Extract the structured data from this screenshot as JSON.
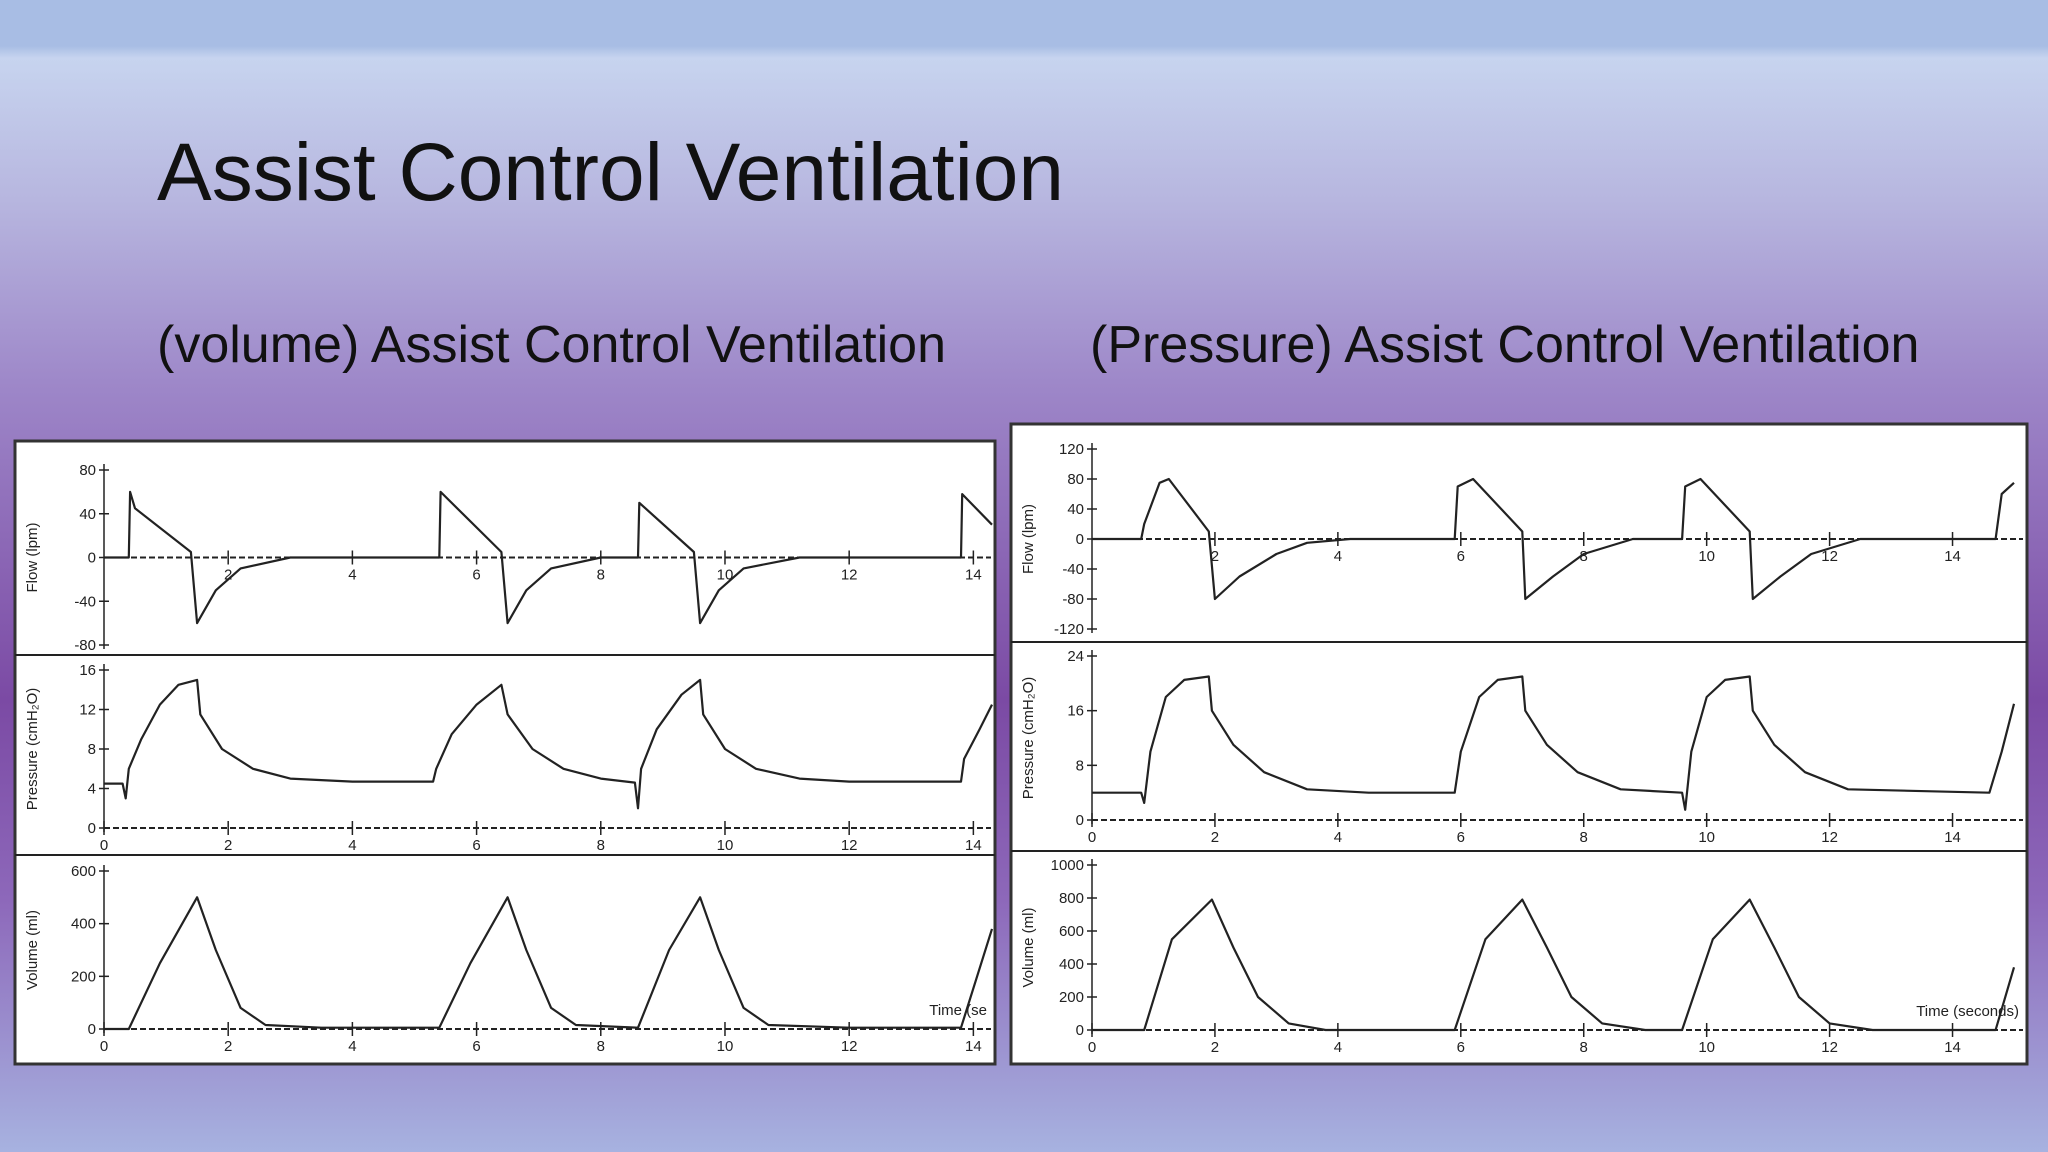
{
  "title": "Assist Control Ventilation",
  "subtitles": [
    "(volume) Assist Control Ventilation",
    "(Pressure) Assist Control Ventilation"
  ],
  "chart_data": [
    {
      "type": "line",
      "ylabel": "Flow (lpm)",
      "color": "#222222",
      "xlim": [
        0,
        14.3
      ],
      "ylim": [
        -80,
        80
      ],
      "xticks": [
        2,
        4,
        6,
        8,
        10,
        12,
        14
      ],
      "yticks": [
        -80,
        -40,
        0,
        40,
        80
      ],
      "x": [
        0,
        0.4,
        0.42,
        0.5,
        1.4,
        1.5,
        1.8,
        2.2,
        3,
        5.4,
        5.42,
        6.4,
        6.5,
        6.8,
        7.2,
        8,
        8.6,
        8.62,
        9.5,
        9.6,
        9.9,
        10.3,
        11.2,
        13.8,
        13.82,
        14.3
      ],
      "values": [
        0,
        0,
        60,
        45,
        5,
        -60,
        -30,
        -10,
        0,
        0,
        60,
        5,
        -60,
        -30,
        -10,
        0,
        0,
        50,
        5,
        -60,
        -30,
        -10,
        0,
        0,
        58,
        30
      ]
    },
    {
      "type": "line",
      "ylabel": "Pressure (cmH₂O)",
      "color": "#222222",
      "xlim": [
        0,
        14.3
      ],
      "ylim": [
        0,
        16
      ],
      "xticks": [
        0,
        2,
        4,
        6,
        8,
        10,
        12,
        14
      ],
      "yticks": [
        0,
        4,
        8,
        12,
        16
      ],
      "x": [
        0,
        0.3,
        0.35,
        0.4,
        0.6,
        0.9,
        1.2,
        1.5,
        1.55,
        1.9,
        2.4,
        3,
        4,
        5.3,
        5.35,
        5.6,
        6,
        6.4,
        6.5,
        6.9,
        7.4,
        8,
        8.55,
        8.6,
        8.65,
        8.9,
        9.3,
        9.6,
        9.65,
        10,
        10.5,
        11.2,
        12,
        13.8,
        13.85,
        14.1,
        14.3
      ],
      "values": [
        4.5,
        4.5,
        3,
        6,
        9,
        12.5,
        14.5,
        15,
        11.5,
        8,
        6,
        5,
        4.7,
        4.7,
        6,
        9.5,
        12.5,
        14.5,
        11.5,
        8,
        6,
        5,
        4.6,
        2,
        6,
        10,
        13.5,
        15,
        11.5,
        8,
        6,
        5,
        4.7,
        4.7,
        7,
        10,
        12.5
      ]
    },
    {
      "type": "line",
      "ylabel": "Volume (ml)",
      "xlabel": "Time (se",
      "color": "#222222",
      "xlim": [
        0,
        14.3
      ],
      "ylim": [
        0,
        600
      ],
      "xticks": [
        0,
        2,
        4,
        6,
        8,
        10,
        12,
        14
      ],
      "yticks": [
        0,
        200,
        400,
        600
      ],
      "x": [
        0,
        0.4,
        0.9,
        1.5,
        1.8,
        2.2,
        2.6,
        3.5,
        5.4,
        5.9,
        6.5,
        6.8,
        7.2,
        7.6,
        8.6,
        9.1,
        9.6,
        9.9,
        10.3,
        10.7,
        12,
        13.8,
        14.3
      ],
      "values": [
        0,
        0,
        250,
        500,
        300,
        80,
        15,
        5,
        5,
        250,
        500,
        300,
        80,
        15,
        5,
        300,
        500,
        300,
        80,
        15,
        5,
        5,
        380
      ]
    },
    {
      "type": "line",
      "ylabel": "Flow (lpm)",
      "color": "#222222",
      "xlim": [
        0,
        15
      ],
      "ylim": [
        -120,
        120
      ],
      "xticks": [
        2,
        4,
        6,
        8,
        10,
        12,
        14
      ],
      "yticks": [
        -120,
        -80,
        -40,
        0,
        40,
        80,
        120
      ],
      "x": [
        0,
        0.8,
        0.85,
        1.1,
        1.25,
        1.9,
        2,
        2.4,
        3,
        3.5,
        4.2,
        5.9,
        5.95,
        6.2,
        7,
        7.05,
        7.5,
        8,
        8.8,
        9.6,
        9.65,
        9.9,
        10.7,
        10.75,
        11.2,
        11.7,
        12.5,
        14.7,
        14.8,
        15
      ],
      "values": [
        0,
        0,
        20,
        75,
        80,
        10,
        -80,
        -50,
        -20,
        -5,
        0,
        0,
        70,
        80,
        10,
        -80,
        -50,
        -20,
        0,
        0,
        70,
        80,
        10,
        -80,
        -50,
        -20,
        0,
        0,
        60,
        75
      ]
    },
    {
      "type": "line",
      "ylabel": "Pressure (cmH₂O)",
      "color": "#222222",
      "xlim": [
        0,
        15
      ],
      "ylim": [
        0,
        24
      ],
      "xticks": [
        0,
        2,
        4,
        6,
        8,
        10,
        12,
        14
      ],
      "yticks": [
        0,
        8,
        16,
        24
      ],
      "x": [
        0,
        0.8,
        0.85,
        0.95,
        1.2,
        1.5,
        1.9,
        1.95,
        2.3,
        2.8,
        3.5,
        4.5,
        5.9,
        6,
        6.3,
        6.6,
        7,
        7.05,
        7.4,
        7.9,
        8.6,
        9.6,
        9.65,
        9.75,
        10,
        10.3,
        10.7,
        10.75,
        11.1,
        11.6,
        12.3,
        14.6,
        14.8,
        15
      ],
      "values": [
        4,
        4,
        2.5,
        10,
        18,
        20.5,
        21,
        16,
        11,
        7,
        4.5,
        4,
        4,
        10,
        18,
        20.5,
        21,
        16,
        11,
        7,
        4.5,
        4,
        1.5,
        10,
        18,
        20.5,
        21,
        16,
        11,
        7,
        4.5,
        4,
        10,
        17
      ]
    },
    {
      "type": "line",
      "ylabel": "Volume (ml)",
      "xlabel": "Time (seconds)",
      "color": "#222222",
      "xlim": [
        0,
        15
      ],
      "ylim": [
        0,
        1000
      ],
      "xticks": [
        0,
        2,
        4,
        6,
        8,
        10,
        12,
        14
      ],
      "yticks": [
        0,
        200,
        400,
        600,
        800,
        1000
      ],
      "x": [
        0,
        0.85,
        1.3,
        1.95,
        2.3,
        2.7,
        3.2,
        3.8,
        5.9,
        6.4,
        7,
        7.4,
        7.8,
        8.3,
        9,
        9.6,
        10.1,
        10.7,
        11.1,
        11.5,
        12,
        12.7,
        14.7,
        15
      ],
      "values": [
        0,
        0,
        550,
        790,
        500,
        200,
        40,
        0,
        0,
        550,
        790,
        500,
        200,
        40,
        0,
        0,
        550,
        790,
        500,
        200,
        40,
        0,
        0,
        380
      ]
    }
  ]
}
